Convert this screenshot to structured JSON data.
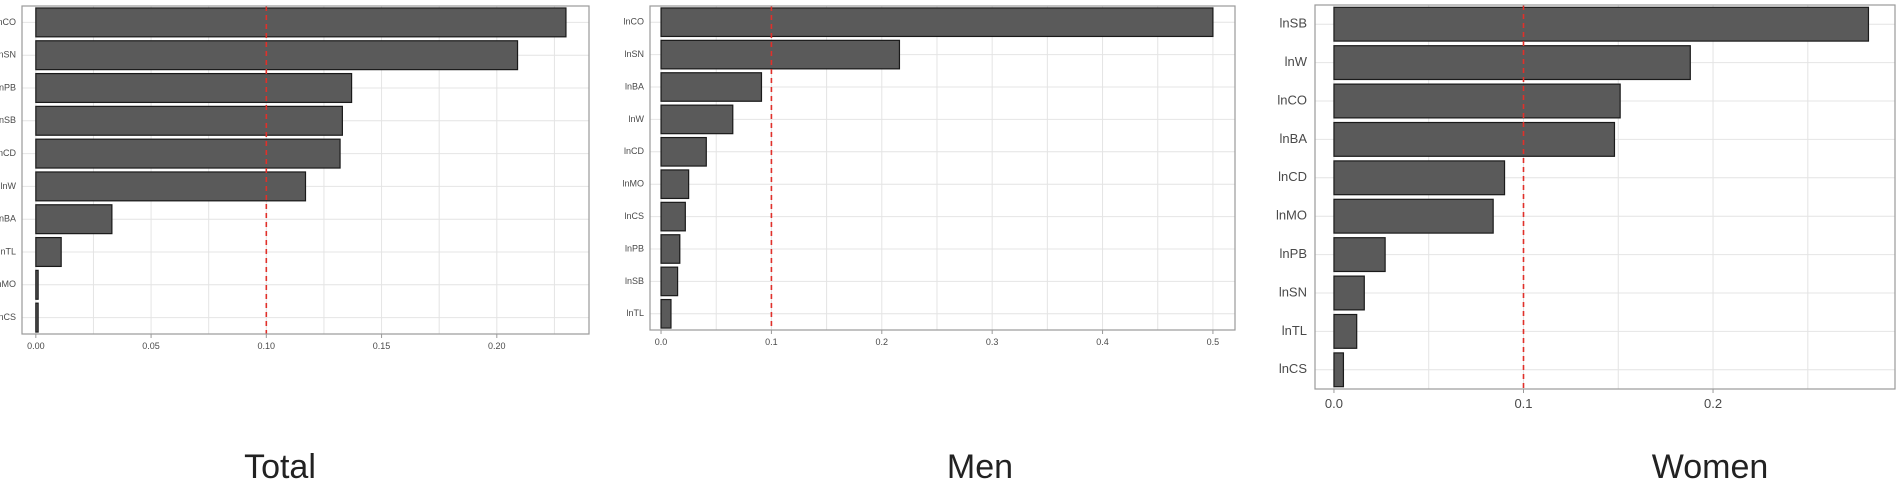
{
  "colors": {
    "bar_fill": "#5a5a5a",
    "bar_stroke": "#1a1a1a",
    "threshold_line": "#e0302a",
    "grid": "#e4e4e4",
    "frame": "#9a9a9a",
    "label_text": "#4a4a4a"
  },
  "chart_data": [
    {
      "type": "bar",
      "orientation": "horizontal",
      "title": "Total",
      "categories": [
        "lnCO",
        "lnSN",
        "lnPB",
        "lnSB",
        "lnCD",
        "lnW",
        "lnBA",
        "lnTL",
        "lnMO",
        "lnCS"
      ],
      "values": [
        0.23,
        0.209,
        0.137,
        0.133,
        0.132,
        0.117,
        0.033,
        0.011,
        0.001,
        0.001
      ],
      "xlim": [
        -0.006,
        0.24
      ],
      "xticks": [
        0.0,
        0.05,
        0.1,
        0.15,
        0.2
      ],
      "xtick_labels": [
        "0.00",
        "0.05",
        "0.10",
        "0.15",
        "0.20"
      ],
      "threshold": 0.1,
      "grid": true
    },
    {
      "type": "bar",
      "orientation": "horizontal",
      "title": "Men",
      "categories": [
        "lnCO",
        "lnSN",
        "lnBA",
        "lnW",
        "lnCD",
        "lnMO",
        "lnCS",
        "lnPB",
        "lnSB",
        "lnTL"
      ],
      "values": [
        0.5,
        0.216,
        0.091,
        0.065,
        0.041,
        0.025,
        0.022,
        0.017,
        0.015,
        0.009
      ],
      "xlim": [
        -0.01,
        0.52
      ],
      "xticks": [
        0.0,
        0.1,
        0.2,
        0.3,
        0.4,
        0.5
      ],
      "xtick_labels": [
        "0.0",
        "0.1",
        "0.2",
        "0.3",
        "0.4",
        "0.5"
      ],
      "threshold": 0.1,
      "grid": true
    },
    {
      "type": "bar",
      "orientation": "horizontal",
      "title": "Women",
      "categories": [
        "lnSB",
        "lnW",
        "lnCO",
        "lnBA",
        "lnCD",
        "lnMO",
        "lnPB",
        "lnSN",
        "lnTL",
        "lnCS"
      ],
      "values": [
        0.282,
        0.188,
        0.151,
        0.148,
        0.09,
        0.084,
        0.027,
        0.016,
        0.012,
        0.005
      ],
      "xlim": [
        -0.01,
        0.296
      ],
      "xticks": [
        0.0,
        0.1,
        0.2
      ],
      "xtick_labels": [
        "0.0",
        "0.1",
        "0.2"
      ],
      "threshold": 0.1,
      "grid": true
    }
  ]
}
